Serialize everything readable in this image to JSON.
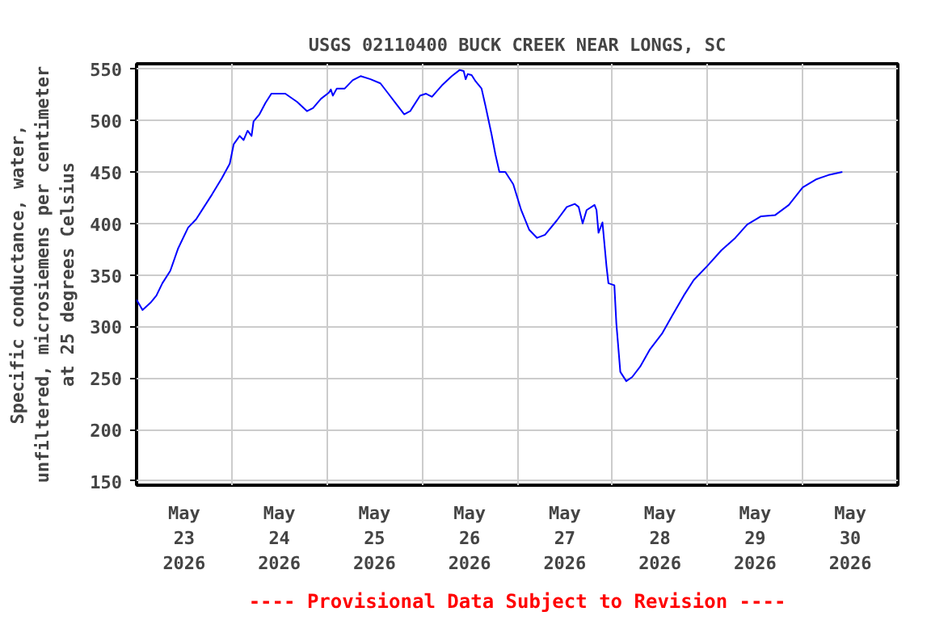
{
  "chart_data": {
    "type": "line",
    "title": "USGS 02110400 BUCK CREEK NEAR LONGS, SC",
    "ylabel": "Specific conductance, water,\nunfiltered, microsiemens per centimeter\nat 25 degrees Celsius",
    "annotations": [
      "---- Provisional Data Subject to Revision ----"
    ],
    "x": [
      "2026-05-23T00:00",
      "2026-05-23T01:30",
      "2026-05-23T03:30",
      "2026-05-23T05:00",
      "2026-05-23T06:30",
      "2026-05-23T08:30",
      "2026-05-23T10:30",
      "2026-05-23T13:00",
      "2026-05-23T15:00",
      "2026-05-23T17:00",
      "2026-05-23T19:00",
      "2026-05-23T21:30",
      "2026-05-23T23:30",
      "2026-05-24T00:30",
      "2026-05-24T02:00",
      "2026-05-24T03:00",
      "2026-05-24T04:00",
      "2026-05-24T05:00",
      "2026-05-24T05:30",
      "2026-05-24T07:00",
      "2026-05-24T08:30",
      "2026-05-24T10:00",
      "2026-05-24T13:30",
      "2026-05-24T16:30",
      "2026-05-24T19:00",
      "2026-05-24T20:30",
      "2026-05-24T22:30",
      "2026-05-25T00:30",
      "2026-05-25T01:00",
      "2026-05-25T01:30",
      "2026-05-25T02:30",
      "2026-05-25T04:30",
      "2026-05-25T06:30",
      "2026-05-25T08:30",
      "2026-05-25T11:00",
      "2026-05-25T13:30",
      "2026-05-25T15:30",
      "2026-05-25T17:30",
      "2026-05-25T19:30",
      "2026-05-25T21:00",
      "2026-05-25T23:30",
      "2026-05-26T01:00",
      "2026-05-26T02:30",
      "2026-05-26T05:00",
      "2026-05-26T07:30",
      "2026-05-26T09:30",
      "2026-05-26T10:30",
      "2026-05-26T11:00",
      "2026-05-26T11:30",
      "2026-05-26T12:30",
      "2026-05-26T13:30",
      "2026-05-26T15:00",
      "2026-05-26T16:00",
      "2026-05-26T17:30",
      "2026-05-26T18:30",
      "2026-05-26T19:30",
      "2026-05-26T21:00",
      "2026-05-26T23:00",
      "2026-05-27T01:00",
      "2026-05-27T03:00",
      "2026-05-27T05:00",
      "2026-05-27T07:00",
      "2026-05-27T10:00",
      "2026-05-27T12:30",
      "2026-05-27T14:30",
      "2026-05-27T15:30",
      "2026-05-27T16:30",
      "2026-05-27T17:30",
      "2026-05-27T19:30",
      "2026-05-27T20:00",
      "2026-05-27T20:30",
      "2026-05-27T21:30",
      "2026-05-27T22:30",
      "2026-05-27T23:00",
      "2026-05-28T00:30",
      "2026-05-28T01:00",
      "2026-05-28T02:00",
      "2026-05-28T03:30",
      "2026-05-28T05:00",
      "2026-05-28T07:00",
      "2026-05-28T09:30",
      "2026-05-28T12:30",
      "2026-05-28T15:00",
      "2026-05-28T18:00",
      "2026-05-28T20:30",
      "2026-05-29T00:00",
      "2026-05-29T03:30",
      "2026-05-29T07:00",
      "2026-05-29T10:00",
      "2026-05-29T13:30",
      "2026-05-29T17:00",
      "2026-05-29T20:30",
      "2026-05-30T00:00",
      "2026-05-30T03:30",
      "2026-05-30T06:30",
      "2026-05-30T10:00"
    ],
    "series": [
      {
        "color": "#0000ff",
        "values": [
          326,
          316,
          323,
          330,
          342,
          354,
          376,
          396,
          404,
          416,
          428,
          444,
          458,
          477,
          485,
          481,
          490,
          485,
          499,
          506,
          517,
          526,
          526,
          518,
          509,
          512,
          521,
          527,
          530,
          524,
          531,
          531,
          539,
          543,
          540,
          536,
          526,
          516,
          506,
          509,
          524,
          526,
          523,
          534,
          543,
          549,
          548,
          540,
          545,
          544,
          538,
          531,
          514,
          487,
          467,
          450,
          450,
          438,
          413,
          394,
          386,
          389,
          403,
          416,
          419,
          416,
          400,
          413,
          418,
          413,
          391,
          401,
          359,
          342,
          340,
          303,
          256,
          247,
          251,
          261,
          278,
          293,
          310,
          330,
          345,
          359,
          374,
          386,
          399,
          407,
          408,
          418,
          435,
          443,
          447,
          450
        ]
      }
    ],
    "xlim": [
      "2026-05-23T00:00",
      "2026-05-31T00:00"
    ],
    "xticks": [
      {
        "value": "2026-05-23T00:00",
        "label": null
      },
      {
        "value": "2026-05-23T12:00",
        "label": "May\n23\n2026"
      },
      {
        "value": "2026-05-24T00:00",
        "label": null
      },
      {
        "value": "2026-05-24T12:00",
        "label": "May\n24\n2026"
      },
      {
        "value": "2026-05-25T00:00",
        "label": null
      },
      {
        "value": "2026-05-25T12:00",
        "label": "May\n25\n2026"
      },
      {
        "value": "2026-05-26T00:00",
        "label": null
      },
      {
        "value": "2026-05-26T12:00",
        "label": "May\n26\n2026"
      },
      {
        "value": "2026-05-27T00:00",
        "label": null
      },
      {
        "value": "2026-05-27T12:00",
        "label": "May\n27\n2026"
      },
      {
        "value": "2026-05-28T00:00",
        "label": null
      },
      {
        "value": "2026-05-28T12:00",
        "label": "May\n28\n2026"
      },
      {
        "value": "2026-05-29T00:00",
        "label": null
      },
      {
        "value": "2026-05-29T12:00",
        "label": "May\n29\n2026"
      },
      {
        "value": "2026-05-30T00:00",
        "label": null
      },
      {
        "value": "2026-05-30T12:00",
        "label": "May\n30\n2026"
      },
      {
        "value": "2026-05-31T00:00",
        "label": null
      }
    ],
    "ylim": [
      146,
      555
    ],
    "yticks": [
      150,
      200,
      250,
      300,
      350,
      400,
      450,
      500,
      550
    ],
    "grid": true
  }
}
